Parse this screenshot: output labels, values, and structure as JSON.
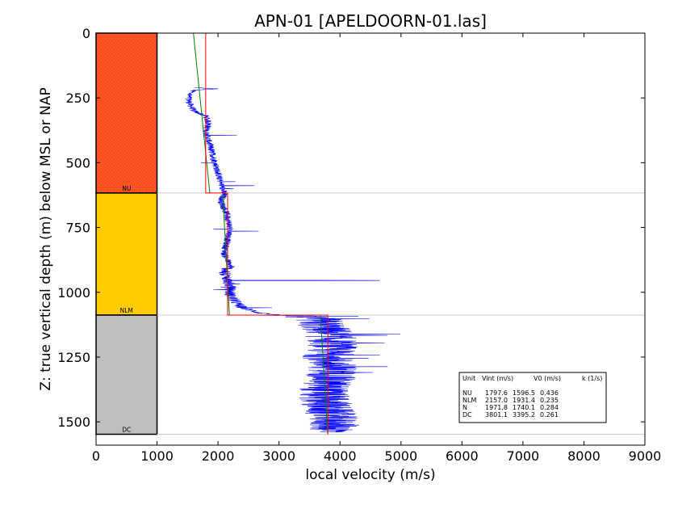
{
  "chart_data": {
    "type": "line",
    "title": "APN-01 [APELDOORN-01.las]",
    "xlabel": "local velocity (m/s)",
    "ylabel": "Z: true vertical depth (m) below MSL or NAP",
    "xlim": [
      0,
      9000
    ],
    "ylim": [
      0,
      1590
    ],
    "y_inverted": true,
    "x_ticks": [
      0,
      1000,
      2000,
      3000,
      4000,
      5000,
      6000,
      7000,
      8000,
      9000
    ],
    "y_ticks": [
      0,
      250,
      500,
      750,
      1000,
      1250,
      1500
    ],
    "colors": {
      "velocity_log": "#0000ff",
      "interval_velocity": "#ff0000",
      "v0_k_model": "#008000",
      "boundary": "#cccccc"
    },
    "units": [
      {
        "name": "NU",
        "top": 0,
        "base": 617,
        "color": "#ff5522",
        "pattern": "dotted"
      },
      {
        "name": "NLM",
        "top": 617,
        "base": 1088,
        "color": "#ffcc00",
        "pattern": "none"
      },
      {
        "name": "DC",
        "top": 1088,
        "base": 1548,
        "color": "#bfbfbf",
        "pattern": "none"
      }
    ],
    "series": [
      {
        "name": "Vint (m/s)",
        "segments": [
          {
            "unit": "NU",
            "depth": [
              0,
              617
            ],
            "value": 1797.6
          },
          {
            "unit": "NLM",
            "depth": [
              617,
              1088
            ],
            "value": 2157.0
          },
          {
            "unit": "DC",
            "depth": [
              1088,
              1548
            ],
            "value": 3801.1
          }
        ]
      },
      {
        "name": "V0 (m/s) / k (1/s)",
        "segments": [
          {
            "unit": "NU",
            "depth": [
              0,
              617
            ],
            "v": [
              1596.5,
              1865.5
            ]
          },
          {
            "unit": "NLM",
            "depth": [
              617,
              1088
            ],
            "v": [
              2076.4,
              2187.1
            ]
          },
          {
            "unit": "DC",
            "depth": [
              1088,
              1548
            ],
            "v": [
              3679.2,
              3799.3
            ]
          }
        ]
      },
      {
        "name": "local velocity log",
        "anchors": [
          [
            210,
            1600
          ],
          [
            215,
            2000
          ],
          [
            220,
            1600
          ],
          [
            240,
            1520
          ],
          [
            270,
            1530
          ],
          [
            300,
            1600
          ],
          [
            320,
            1800
          ],
          [
            350,
            1850
          ],
          [
            380,
            1800
          ],
          [
            420,
            1850
          ],
          [
            460,
            1900
          ],
          [
            500,
            1950
          ],
          [
            540,
            2000
          ],
          [
            580,
            2050
          ],
          [
            620,
            2100
          ],
          [
            650,
            2050
          ],
          [
            700,
            2150
          ],
          [
            760,
            2200
          ],
          [
            800,
            2150
          ],
          [
            850,
            2100
          ],
          [
            900,
            2200
          ],
          [
            920,
            2100
          ],
          [
            950,
            2150
          ],
          [
            980,
            2200
          ],
          [
            1010,
            2200
          ],
          [
            1040,
            2300
          ],
          [
            1060,
            2400
          ],
          [
            1080,
            2700
          ],
          [
            1088,
            3000
          ],
          [
            1100,
            3600
          ],
          [
            1150,
            3800
          ],
          [
            1200,
            3900
          ],
          [
            1250,
            3800
          ],
          [
            1300,
            3900
          ],
          [
            1350,
            3800
          ],
          [
            1400,
            3700
          ],
          [
            1450,
            3800
          ],
          [
            1500,
            3900
          ],
          [
            1540,
            3900
          ]
        ]
      }
    ],
    "legend": {
      "placement": "lower-right",
      "header": [
        "Unit",
        "Vint (m/s)",
        "V0 (m/s)",
        "k (1/s)"
      ],
      "rows": [
        [
          "NU",
          "1797.6",
          "1596.5",
          "0.436"
        ],
        [
          "NLM",
          "2157.0",
          "1931.4",
          "0.235"
        ],
        [
          "N",
          "1971.8",
          "1740.1",
          "0.284"
        ],
        [
          "DC",
          "3801.1",
          "3395.2",
          "0.261"
        ]
      ]
    }
  }
}
